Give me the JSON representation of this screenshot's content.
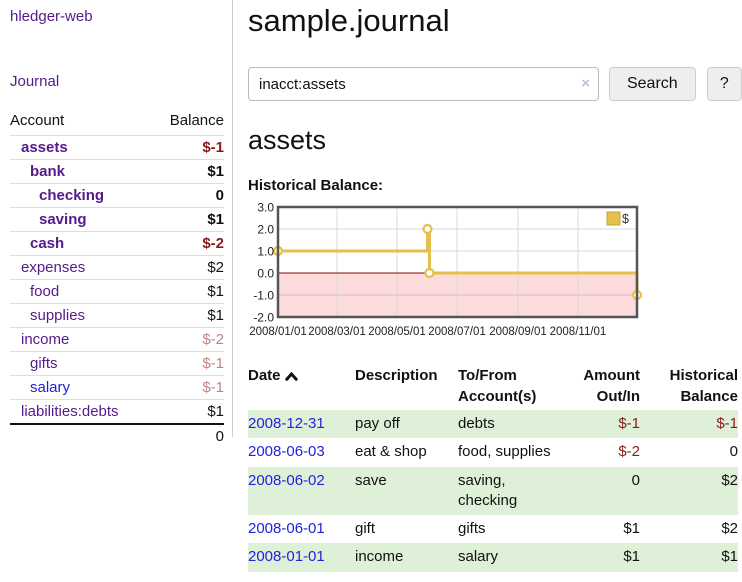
{
  "app": {
    "title": "hledger-web"
  },
  "sidebar": {
    "nav": {
      "journal": "Journal"
    },
    "accounts": {
      "headers": {
        "account": "Account",
        "balance": "Balance"
      },
      "rows": [
        {
          "name": "assets",
          "depth": 1,
          "bold": true,
          "link": "purple",
          "balance": "$-1",
          "tone": "neg"
        },
        {
          "name": "bank",
          "depth": 2,
          "bold": true,
          "link": "purple",
          "balance": "$1",
          "tone": "pos"
        },
        {
          "name": "checking",
          "depth": 3,
          "bold": true,
          "link": "purple",
          "balance": "0",
          "tone": "pos"
        },
        {
          "name": "saving",
          "depth": 3,
          "bold": true,
          "link": "purple",
          "balance": "$1",
          "tone": "pos"
        },
        {
          "name": "cash",
          "depth": 2,
          "bold": true,
          "link": "purple",
          "balance": "$-2",
          "tone": "neg"
        },
        {
          "name": "expenses",
          "depth": 1,
          "bold": false,
          "link": "purple",
          "balance": "$2",
          "tone": "pos"
        },
        {
          "name": "food",
          "depth": 2,
          "bold": false,
          "link": "purple",
          "balance": "$1",
          "tone": "pos"
        },
        {
          "name": "supplies",
          "depth": 2,
          "bold": false,
          "link": "purple",
          "balance": "$1",
          "tone": "pos"
        },
        {
          "name": "income",
          "depth": 1,
          "bold": false,
          "link": "purple",
          "balance": "$-2",
          "tone": "dimneg"
        },
        {
          "name": "gifts",
          "depth": 2,
          "bold": false,
          "link": "purple",
          "balance": "$-1",
          "tone": "dimneg"
        },
        {
          "name": "salary",
          "depth": 2,
          "bold": false,
          "link": "blue",
          "balance": "$-1",
          "tone": "dimneg"
        },
        {
          "name": "liabilities:debts",
          "depth": 1,
          "bold": false,
          "link": "purple",
          "balance": "$1",
          "tone": "pos"
        }
      ],
      "total": "0"
    }
  },
  "main": {
    "title": "sample.journal",
    "search": {
      "value": "inacct:assets",
      "clear_icon": "×",
      "button": "Search",
      "help": "?"
    },
    "heading": "assets",
    "chart_label": "Historical Balance:"
  },
  "chart_data": {
    "type": "line",
    "step": true,
    "title": "Historical Balance:",
    "legend": [
      "$"
    ],
    "legend_position": "top-right",
    "grid": true,
    "ylim": [
      -2,
      3
    ],
    "xlim_days": [
      0,
      365
    ],
    "y_ticks": [
      3.0,
      2.0,
      1.0,
      0.0,
      -1.0,
      -2.0
    ],
    "x_ticks": [
      {
        "label": "2008/01/01",
        "day": 0
      },
      {
        "label": "2008/03/01",
        "day": 60
      },
      {
        "label": "2008/05/01",
        "day": 121
      },
      {
        "label": "2008/07/01",
        "day": 182
      },
      {
        "label": "2008/09/01",
        "day": 244
      },
      {
        "label": "2008/11/01",
        "day": 305
      }
    ],
    "points": [
      {
        "date": "2008-01-01",
        "day": 0,
        "value": 1
      },
      {
        "date": "2008-06-01",
        "day": 152,
        "value": 2
      },
      {
        "date": "2008-06-03",
        "day": 154,
        "value": 0
      },
      {
        "date": "2008-12-31",
        "day": 365,
        "value": -1
      }
    ]
  },
  "register": {
    "headers": [
      "Date",
      "Description",
      "To/From Account(s)",
      "Amount Out/In",
      "Historical Balance"
    ],
    "rows": [
      {
        "date": "2008-12-31",
        "description": "pay off",
        "accounts": "debts",
        "amount": "$-1",
        "balance": "$-1"
      },
      {
        "date": "2008-06-03",
        "description": "eat & shop",
        "accounts": "food, supplies",
        "amount": "$-2",
        "balance": "0"
      },
      {
        "date": "2008-06-02",
        "description": "save",
        "accounts": "saving, checking",
        "amount": "0",
        "balance": "$2"
      },
      {
        "date": "2008-06-01",
        "description": "gift",
        "accounts": "gifts",
        "amount": "$1",
        "balance": "$2"
      },
      {
        "date": "2008-01-01",
        "description": "income",
        "accounts": "salary",
        "amount": "$1",
        "balance": "$1"
      }
    ]
  },
  "colors": {
    "purple_link": "#551a8b",
    "blue_link": "#2222dd",
    "negative": "#8b1a1a",
    "dim_negative": "#c08686",
    "stripe_green": "#dff0d8",
    "chart_line_gold": "#e7c04b",
    "legend_border": "#c4a43a",
    "chart_border": "#555555",
    "gridline": "#d8d8d8",
    "pink_fill": "#fbdbdb",
    "pink_gridline": "#dfb8b8",
    "zero_line": "#8b0000",
    "button_bg": "#eeeeee"
  }
}
